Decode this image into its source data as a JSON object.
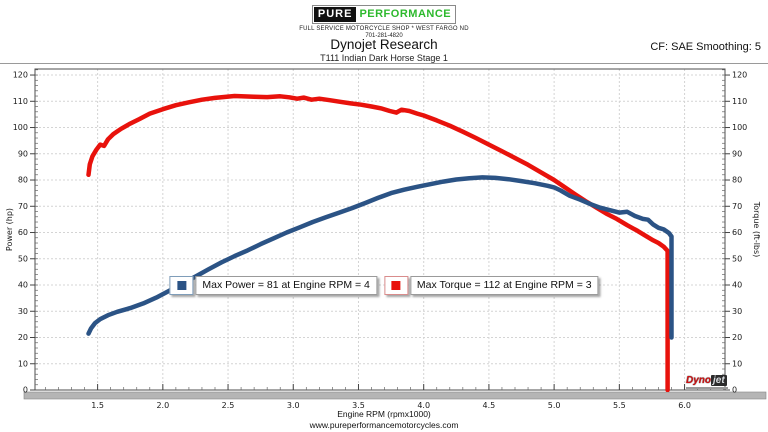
{
  "header": {
    "logo": {
      "brand_first": "PURE",
      "brand_second": "PERFORMANCE",
      "tagline": "FULL SERVICE MOTORCYCLE SHOP * WEST FARGO ND",
      "phone": "701-281-4820"
    },
    "title": "Dynojet Research",
    "subtitle": "T111 Indian Dark Horse Stage 1",
    "cf_label": "CF: SAE Smoothing: 5"
  },
  "watermark": {
    "brand_red": "Dyno",
    "brand_gray": "jet"
  },
  "footer": {
    "website": "www.pureperformancemotorcycles.com"
  },
  "colors": {
    "power": "#2b5385",
    "torque": "#e8120c",
    "brand_green": "#2db92d",
    "grid": "#d4d4d4",
    "axis": "#4d4d4d"
  },
  "chart_data": {
    "type": "line",
    "title": "Dynojet Research",
    "subtitle": "T111 Indian Dark Horse Stage 1",
    "xlabel": "Engine RPM (rpmx1000)",
    "ylabel_left": "Power (hp)",
    "ylabel_right": "Torque (ft-lbs)",
    "xlim": [
      1.02,
      6.31
    ],
    "ylim": [
      0,
      122.3
    ],
    "x_ticks": [
      1.5,
      2.0,
      2.5,
      3.0,
      3.5,
      4.0,
      4.5,
      5.0,
      5.5,
      6.0
    ],
    "x_tick_labels": [
      "1.5",
      "2.0",
      "2.5",
      "3.0",
      "3.5",
      "4.0",
      "4.5",
      "5.0",
      "5.5",
      "6.0"
    ],
    "y_ticks": [
      0,
      10,
      20,
      30,
      40,
      50,
      60,
      70,
      80,
      90,
      100,
      110,
      120
    ],
    "x_minor_step": 0.1,
    "y_minor_step": 2,
    "grid": "dashed",
    "legend_position": "center",
    "max_power": 81,
    "max_torque": 112,
    "series": [
      {
        "name": "Power",
        "color": "#2b5385",
        "max_label": "Max Power = 81 at Engine RPM = 4",
        "points": [
          [
            1.43,
            21.5
          ],
          [
            1.45,
            23.5
          ],
          [
            1.48,
            25.5
          ],
          [
            1.52,
            27
          ],
          [
            1.58,
            28.5
          ],
          [
            1.65,
            29.8
          ],
          [
            1.75,
            31.2
          ],
          [
            1.85,
            33
          ],
          [
            1.95,
            35.2
          ],
          [
            2.05,
            37.8
          ],
          [
            2.15,
            40.5
          ],
          [
            2.25,
            43.2
          ],
          [
            2.35,
            46
          ],
          [
            2.45,
            48.6
          ],
          [
            2.55,
            51
          ],
          [
            2.65,
            53.2
          ],
          [
            2.75,
            55.6
          ],
          [
            2.85,
            57.8
          ],
          [
            2.95,
            60
          ],
          [
            3.05,
            62
          ],
          [
            3.15,
            64
          ],
          [
            3.25,
            65.8
          ],
          [
            3.35,
            67.5
          ],
          [
            3.45,
            69.3
          ],
          [
            3.55,
            71.2
          ],
          [
            3.65,
            73.2
          ],
          [
            3.75,
            75
          ],
          [
            3.85,
            76.3
          ],
          [
            3.95,
            77.4
          ],
          [
            4.05,
            78.4
          ],
          [
            4.15,
            79.4
          ],
          [
            4.25,
            80.2
          ],
          [
            4.35,
            80.7
          ],
          [
            4.45,
            81
          ],
          [
            4.55,
            80.8
          ],
          [
            4.65,
            80.3
          ],
          [
            4.75,
            79.6
          ],
          [
            4.85,
            78.8
          ],
          [
            4.95,
            77.8
          ],
          [
            5.0,
            77.2
          ],
          [
            5.05,
            76
          ],
          [
            5.12,
            74
          ],
          [
            5.2,
            72.5
          ],
          [
            5.28,
            70.8
          ],
          [
            5.35,
            69.5
          ],
          [
            5.42,
            68.6
          ],
          [
            5.5,
            67.6
          ],
          [
            5.56,
            67.9
          ],
          [
            5.62,
            66.3
          ],
          [
            5.68,
            65.2
          ],
          [
            5.72,
            64.9
          ],
          [
            5.76,
            63
          ],
          [
            5.8,
            61.8
          ],
          [
            5.84,
            61.2
          ],
          [
            5.88,
            59.8
          ],
          [
            5.9,
            58.5
          ],
          [
            5.9,
            20
          ]
        ]
      },
      {
        "name": "Torque",
        "color": "#e8120c",
        "max_label": "Max Torque = 112 at Engine RPM = 3",
        "points": [
          [
            1.43,
            82
          ],
          [
            1.44,
            86
          ],
          [
            1.46,
            89
          ],
          [
            1.49,
            91.5
          ],
          [
            1.52,
            93.5
          ],
          [
            1.55,
            93
          ],
          [
            1.58,
            95.5
          ],
          [
            1.62,
            97.5
          ],
          [
            1.68,
            99.5
          ],
          [
            1.75,
            101.5
          ],
          [
            1.82,
            103.2
          ],
          [
            1.9,
            105.3
          ],
          [
            2.0,
            107
          ],
          [
            2.1,
            108.5
          ],
          [
            2.2,
            109.6
          ],
          [
            2.3,
            110.6
          ],
          [
            2.4,
            111.3
          ],
          [
            2.5,
            111.8
          ],
          [
            2.55,
            112
          ],
          [
            2.6,
            111.9
          ],
          [
            2.7,
            111.7
          ],
          [
            2.8,
            111.6
          ],
          [
            2.9,
            111.9
          ],
          [
            2.97,
            111.5
          ],
          [
            3.03,
            111
          ],
          [
            3.08,
            111.4
          ],
          [
            3.14,
            110.6
          ],
          [
            3.2,
            111
          ],
          [
            3.28,
            110.4
          ],
          [
            3.36,
            109.8
          ],
          [
            3.44,
            109.2
          ],
          [
            3.52,
            108.7
          ],
          [
            3.6,
            108
          ],
          [
            3.68,
            107.2
          ],
          [
            3.74,
            106.3
          ],
          [
            3.79,
            105.7
          ],
          [
            3.83,
            106.8
          ],
          [
            3.89,
            106.3
          ],
          [
            3.95,
            105.3
          ],
          [
            4.0,
            104.6
          ],
          [
            4.1,
            102.7
          ],
          [
            4.2,
            100.7
          ],
          [
            4.3,
            98.4
          ],
          [
            4.4,
            96
          ],
          [
            4.5,
            93.5
          ],
          [
            4.6,
            91
          ],
          [
            4.7,
            88.4
          ],
          [
            4.8,
            85.8
          ],
          [
            4.9,
            82.9
          ],
          [
            5.0,
            80
          ],
          [
            5.08,
            77.3
          ],
          [
            5.16,
            74.6
          ],
          [
            5.24,
            72
          ],
          [
            5.32,
            69.6
          ],
          [
            5.4,
            67.2
          ],
          [
            5.48,
            65.2
          ],
          [
            5.56,
            62.8
          ],
          [
            5.64,
            60.6
          ],
          [
            5.7,
            58.8
          ],
          [
            5.76,
            57
          ],
          [
            5.8,
            56
          ],
          [
            5.84,
            54.6
          ],
          [
            5.87,
            53
          ],
          [
            5.87,
            0
          ]
        ]
      }
    ]
  }
}
